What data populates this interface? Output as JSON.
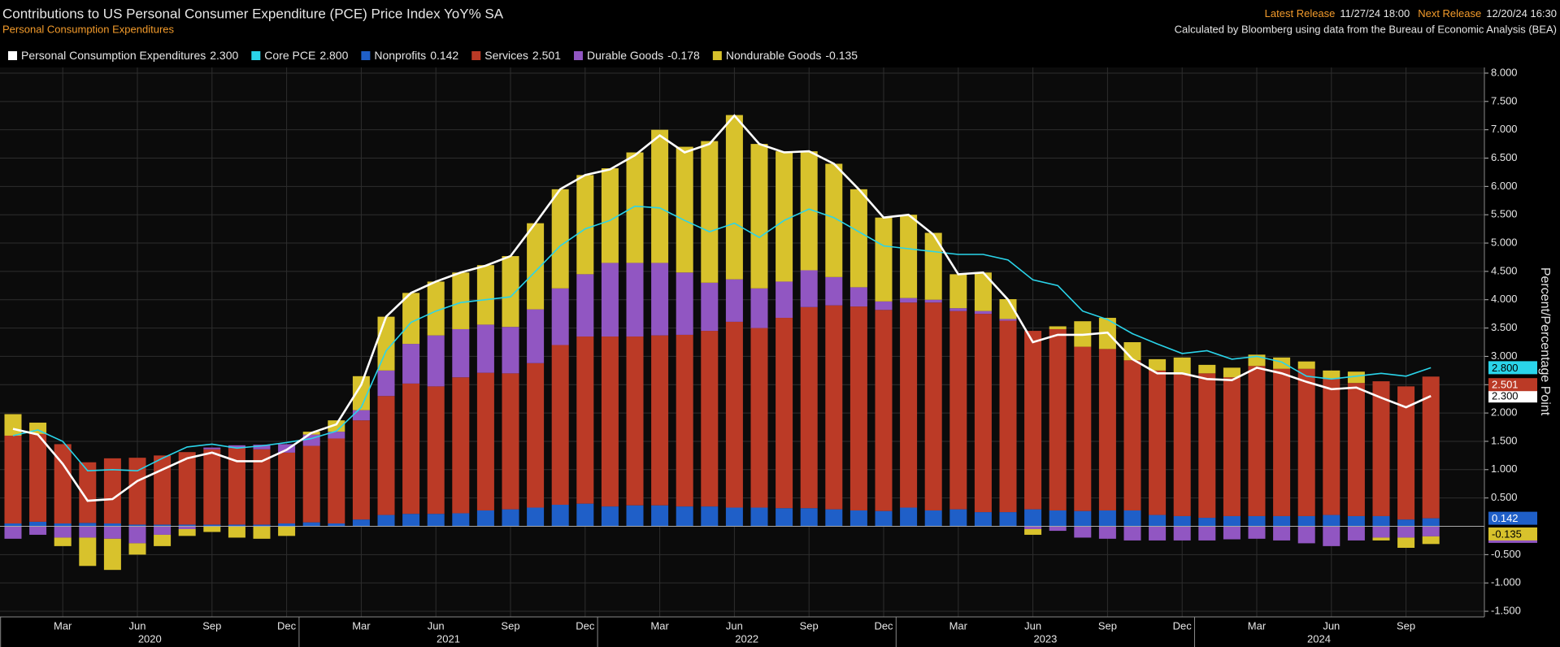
{
  "chart_data": {
    "type": "bar",
    "title": "Contributions to US Personal Consumer Expenditure (PCE) Price Index YoY% SA",
    "subtitle": "Personal Consumption Expenditures",
    "release": {
      "latest_label": "Latest Release",
      "latest": "11/27/24 18:00",
      "next_label": "Next Release",
      "next": "12/20/24 16:30"
    },
    "source": "Calculated by Bloomberg using data from the Bureau of Economic Analysis (BEA)",
    "y_label": "Percent/Percentage Point",
    "categories": [
      null,
      null,
      "Mar",
      null,
      null,
      "Jun",
      null,
      null,
      "Sep",
      null,
      null,
      "Dec",
      null,
      null,
      "Mar",
      null,
      null,
      "Jun",
      null,
      null,
      "Sep",
      null,
      null,
      "Dec",
      null,
      null,
      "Mar",
      null,
      null,
      "Jun",
      null,
      null,
      "Sep",
      null,
      null,
      "Dec",
      null,
      null,
      "Mar",
      null,
      null,
      "Jun",
      null,
      null,
      "Sep",
      null,
      null,
      "Dec",
      null,
      null,
      "Mar",
      null,
      null,
      "Jun",
      null,
      null,
      "Sep",
      null
    ],
    "years": [
      "2020",
      "2021",
      "2022",
      "2023",
      "2024"
    ],
    "ylim": [
      -1.6,
      8.1
    ],
    "yticks": [
      {
        "value": 8,
        "label": "8.000"
      },
      {
        "value": 7.5,
        "label": "7.500"
      },
      {
        "value": 7,
        "label": "7.000"
      },
      {
        "value": 6.5,
        "label": "6.500"
      },
      {
        "value": 6,
        "label": "6.000"
      },
      {
        "value": 5.5,
        "label": "5.500"
      },
      {
        "value": 5,
        "label": "5.000"
      },
      {
        "value": 4.5,
        "label": "4.500"
      },
      {
        "value": 4,
        "label": "4.000"
      },
      {
        "value": 3.5,
        "label": "3.500"
      },
      {
        "value": 3,
        "label": "3.000"
      },
      {
        "value": 2.5,
        "label": "2.500"
      },
      {
        "value": 2,
        "label": "2.000"
      },
      {
        "value": 1.5,
        "label": "1.500"
      },
      {
        "value": 1,
        "label": "1.000"
      },
      {
        "value": 0.5,
        "label": "0.500"
      },
      {
        "value": -0.5,
        "label": "-0.500"
      },
      {
        "value": -1,
        "label": "-1.000"
      },
      {
        "value": -1.5,
        "label": "-1.500"
      }
    ],
    "grid": true,
    "series": [
      {
        "name": "Personal Consumption Expenditures",
        "type": "line",
        "color": "#ffffff",
        "last_label": "2.300",
        "values": [
          1.72,
          1.62,
          1.1,
          0.45,
          0.48,
          0.8,
          1.0,
          1.2,
          1.3,
          1.15,
          1.15,
          1.35,
          1.65,
          1.8,
          2.5,
          3.7,
          4.12,
          4.32,
          4.48,
          4.6,
          4.77,
          5.35,
          5.95,
          6.2,
          6.3,
          6.55,
          6.9,
          6.6,
          6.75,
          7.25,
          6.75,
          6.6,
          6.62,
          6.4,
          5.95,
          5.45,
          5.5,
          5.15,
          4.45,
          4.48,
          4.0,
          3.25,
          3.38,
          3.38,
          3.42,
          2.95,
          2.7,
          2.7,
          2.6,
          2.58,
          2.8,
          2.7,
          2.55,
          2.42,
          2.45,
          2.27,
          2.1,
          2.3
        ]
      },
      {
        "name": "Core PCE",
        "type": "line",
        "color": "#2ad4ea",
        "last_label": "2.800",
        "values": [
          1.6,
          1.7,
          1.5,
          0.98,
          1.0,
          0.98,
          1.2,
          1.4,
          1.45,
          1.38,
          1.42,
          1.48,
          1.55,
          1.68,
          2.1,
          3.1,
          3.6,
          3.8,
          3.95,
          4.0,
          4.05,
          4.5,
          4.95,
          5.25,
          5.4,
          5.65,
          5.62,
          5.4,
          5.2,
          5.35,
          5.1,
          5.4,
          5.6,
          5.45,
          5.2,
          4.95,
          4.9,
          4.85,
          4.8,
          4.8,
          4.7,
          4.35,
          4.25,
          3.8,
          3.65,
          3.4,
          3.22,
          3.05,
          3.1,
          2.95,
          3.0,
          2.9,
          2.65,
          2.6,
          2.65,
          2.7,
          2.65,
          2.8
        ]
      },
      {
        "name": "Nonprofits",
        "type": "bar",
        "color": "#1f5fc8",
        "last_label": "0.142",
        "values": [
          0.05,
          0.08,
          0.05,
          0.06,
          0.05,
          0.03,
          0.03,
          0.03,
          0.03,
          0.03,
          0.03,
          0.05,
          0.07,
          0.05,
          0.12,
          0.2,
          0.22,
          0.22,
          0.23,
          0.28,
          0.3,
          0.33,
          0.38,
          0.4,
          0.35,
          0.37,
          0.37,
          0.35,
          0.35,
          0.33,
          0.33,
          0.32,
          0.32,
          0.3,
          0.28,
          0.27,
          0.33,
          0.28,
          0.3,
          0.25,
          0.25,
          0.3,
          0.28,
          0.27,
          0.28,
          0.28,
          0.2,
          0.18,
          0.15,
          0.18,
          0.18,
          0.18,
          0.18,
          0.2,
          0.18,
          0.18,
          0.12,
          0.142
        ]
      },
      {
        "name": "Services",
        "type": "bar",
        "color": "#bb3a26",
        "last_label": "2.501",
        "values": [
          1.55,
          1.55,
          1.4,
          1.07,
          1.15,
          1.18,
          1.22,
          1.28,
          1.33,
          1.35,
          1.33,
          1.25,
          1.35,
          1.5,
          1.75,
          2.1,
          2.3,
          2.25,
          2.4,
          2.43,
          2.4,
          2.55,
          2.82,
          2.95,
          3.0,
          2.98,
          3.0,
          3.03,
          3.1,
          3.28,
          3.17,
          3.36,
          3.55,
          3.6,
          3.6,
          3.55,
          3.62,
          3.67,
          3.5,
          3.5,
          3.38,
          3.15,
          3.2,
          2.9,
          2.85,
          2.65,
          2.55,
          2.5,
          2.55,
          2.45,
          2.65,
          2.6,
          2.6,
          2.4,
          2.35,
          2.38,
          2.35,
          2.501
        ]
      },
      {
        "name": "Durable Goods",
        "type": "bar",
        "color": "#9156c2",
        "last_label": "-0.178",
        "values": [
          -0.22,
          -0.15,
          -0.2,
          -0.2,
          -0.22,
          -0.3,
          -0.15,
          -0.05,
          0.03,
          0.05,
          0.08,
          0.15,
          0.2,
          0.12,
          0.18,
          0.45,
          0.7,
          0.9,
          0.85,
          0.85,
          0.82,
          0.95,
          1.0,
          1.1,
          1.3,
          1.3,
          1.28,
          1.1,
          0.85,
          0.75,
          0.7,
          0.64,
          0.65,
          0.5,
          0.34,
          0.15,
          0.08,
          0.05,
          0.05,
          0.05,
          0.03,
          -0.05,
          -0.08,
          -0.2,
          -0.22,
          -0.25,
          -0.25,
          -0.25,
          -0.25,
          -0.23,
          -0.22,
          -0.25,
          -0.3,
          -0.35,
          -0.25,
          -0.2,
          -0.2,
          -0.178
        ]
      },
      {
        "name": "Nondurable Goods",
        "type": "bar",
        "color": "#d8c22c",
        "last_label": "-0.135",
        "values": [
          0.38,
          0.2,
          -0.15,
          -0.5,
          -0.55,
          -0.2,
          -0.2,
          -0.12,
          -0.1,
          -0.2,
          -0.22,
          -0.17,
          0.05,
          0.2,
          0.6,
          0.95,
          0.9,
          0.95,
          1.0,
          1.05,
          1.25,
          1.52,
          1.75,
          1.75,
          1.67,
          1.95,
          2.35,
          2.22,
          2.5,
          2.9,
          2.55,
          2.3,
          2.1,
          2.0,
          1.73,
          1.48,
          1.47,
          1.18,
          0.6,
          0.68,
          0.35,
          -0.1,
          0.05,
          0.45,
          0.55,
          0.32,
          0.2,
          0.3,
          0.15,
          0.17,
          0.2,
          0.2,
          0.13,
          0.15,
          0.2,
          -0.05,
          -0.18,
          -0.135
        ]
      }
    ]
  }
}
